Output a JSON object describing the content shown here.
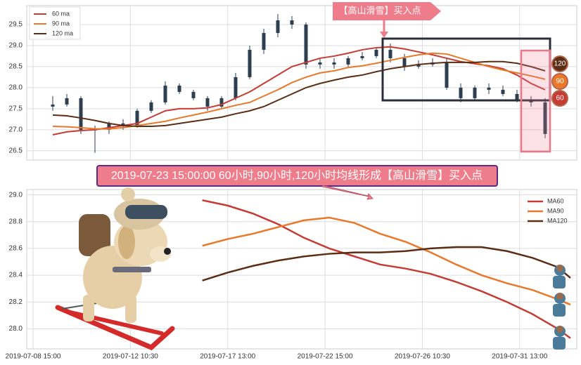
{
  "chart_data": [
    {
      "type": "candlestick",
      "legend": [
        "60 ma",
        "90 ma",
        "120 ma"
      ],
      "xlim": [
        -1.85,
        37.25
      ],
      "ylim": [
        26.28,
        29.95
      ],
      "yticks": [
        26.5,
        {
          "value": 27,
          "label": "27.0"
        },
        27.5,
        {
          "value": 28,
          "label": "28.0"
        },
        28.5,
        {
          "value": 29,
          "label": "29.0"
        },
        29.5
      ],
      "candle_color": "#2c3e50",
      "open": [
        27.55,
        27.6,
        27.75,
        27.0,
        27.0,
        27.15,
        27.1,
        27.45,
        27.65,
        28.05,
        27.9,
        27.75,
        27.55,
        27.75,
        28.25,
        28.9,
        29.3,
        29.6,
        29.5,
        28.55,
        28.6,
        28.55,
        28.7,
        28.75,
        28.9,
        28.7,
        28.5,
        28.55,
        28.6,
        28.0,
        27.75,
        28.0,
        27.95,
        27.85,
        27.7,
        27.65
      ],
      "high": [
        27.8,
        27.85,
        27.8,
        27.1,
        27.2,
        27.25,
        27.5,
        27.7,
        28.15,
        28.1,
        27.95,
        27.8,
        27.8,
        28.35,
        29.0,
        29.4,
        29.75,
        29.7,
        29.55,
        28.7,
        28.7,
        28.75,
        28.85,
        28.95,
        29.05,
        28.8,
        28.65,
        28.7,
        28.7,
        28.1,
        28.05,
        28.1,
        28.05,
        27.95,
        27.8,
        27.75
      ],
      "low": [
        27.45,
        27.55,
        26.9,
        26.45,
        26.9,
        27.0,
        27.05,
        27.4,
        27.6,
        27.85,
        27.7,
        27.45,
        27.5,
        27.7,
        28.2,
        28.8,
        29.2,
        29.4,
        28.45,
        28.45,
        28.45,
        28.5,
        28.65,
        28.7,
        28.6,
        28.4,
        28.45,
        28.5,
        27.95,
        27.65,
        27.7,
        27.85,
        27.8,
        27.65,
        27.55,
        26.8
      ],
      "close": [
        27.6,
        27.75,
        27.0,
        27.0,
        27.15,
        27.1,
        27.45,
        27.65,
        28.05,
        27.9,
        27.75,
        27.55,
        27.75,
        28.25,
        28.9,
        29.3,
        29.6,
        29.5,
        28.55,
        28.6,
        28.55,
        28.7,
        28.75,
        28.9,
        28.7,
        28.5,
        28.55,
        28.6,
        28.0,
        27.75,
        28.0,
        27.95,
        27.85,
        27.7,
        27.65,
        26.9
      ],
      "series": [
        {
          "name": "60 ma",
          "color": "#c43c34",
          "values": [
            26.88,
            26.95,
            26.98,
            27.0,
            27.05,
            27.1,
            27.15,
            27.3,
            27.45,
            27.5,
            27.5,
            27.52,
            27.6,
            27.75,
            27.9,
            28.1,
            28.3,
            28.5,
            28.6,
            28.7,
            28.75,
            28.82,
            28.9,
            28.95,
            28.97,
            28.92,
            28.85,
            28.78,
            28.7,
            28.62,
            28.57,
            28.52,
            28.45,
            28.3,
            28.1,
            27.95
          ]
        },
        {
          "name": "90 ma",
          "color": "#e8782a",
          "values": [
            27.08,
            27.07,
            27.05,
            27.02,
            27.02,
            27.05,
            27.1,
            27.15,
            27.2,
            27.28,
            27.35,
            27.42,
            27.5,
            27.58,
            27.65,
            27.8,
            27.95,
            28.12,
            28.25,
            28.35,
            28.4,
            28.48,
            28.52,
            28.58,
            28.65,
            28.72,
            28.78,
            28.82,
            28.8,
            28.7,
            28.6,
            28.5,
            28.42,
            28.35,
            28.28,
            28.2
          ]
        },
        {
          "name": "120 ma",
          "color": "#5a2d14",
          "values": [
            27.35,
            27.33,
            27.28,
            27.22,
            27.15,
            27.1,
            27.08,
            27.08,
            27.1,
            27.15,
            27.2,
            27.25,
            27.3,
            27.38,
            27.45,
            27.55,
            27.7,
            27.85,
            28.0,
            28.1,
            28.18,
            28.25,
            28.3,
            28.38,
            28.45,
            28.5,
            28.55,
            28.58,
            28.6,
            28.6,
            28.6,
            28.62,
            28.62,
            28.58,
            28.5,
            28.4
          ]
        }
      ],
      "annotation": "【高山滑雪】买入点",
      "badges": [
        "120",
        "90",
        "60"
      ]
    },
    {
      "type": "line",
      "title": "2019-07-23 15:00:00 60小时,90小时,120小时均线形成【高山滑雪】买入点",
      "x": [
        40,
        46,
        52,
        58,
        64,
        70,
        76,
        82,
        88,
        94,
        100,
        106,
        112,
        118,
        124,
        127
      ],
      "xlim": [
        -1.5,
        128.5
      ],
      "xticks": [
        {
          "value": 0,
          "label": "2019-07-08 15:00"
        },
        {
          "value": 23,
          "label": "2019-07-12 10:30"
        },
        {
          "value": 46,
          "label": "2019-07-17 13:00"
        },
        {
          "value": 69,
          "label": "2019-07-22 15:00"
        },
        {
          "value": 92,
          "label": "2019-07-26 10:30"
        },
        {
          "value": 115,
          "label": "2019-07-31 13:00"
        }
      ],
      "ylim": [
        27.85,
        29.04
      ],
      "yticks": [
        {
          "value": 28,
          "label": "28.0"
        },
        28.2,
        28.4,
        28.6,
        28.8,
        {
          "value": 29,
          "label": "29.0"
        }
      ],
      "series": [
        {
          "name": "MA60",
          "color": "#c43c34",
          "values": [
            28.96,
            28.92,
            28.86,
            28.78,
            28.68,
            28.6,
            28.54,
            28.48,
            28.45,
            28.41,
            28.35,
            28.28,
            28.2,
            28.11,
            28.0,
            27.93
          ]
        },
        {
          "name": "MA90",
          "color": "#e8782a",
          "values": [
            28.62,
            28.67,
            28.71,
            28.76,
            28.81,
            28.83,
            28.79,
            28.71,
            28.65,
            28.57,
            28.48,
            28.4,
            28.34,
            28.29,
            28.22,
            28.18
          ]
        },
        {
          "name": "MA120",
          "color": "#5a2d14",
          "values": [
            28.36,
            28.42,
            28.47,
            28.51,
            28.54,
            28.56,
            28.57,
            28.57,
            28.58,
            28.6,
            28.61,
            28.61,
            28.58,
            28.53,
            28.46,
            28.38
          ]
        }
      ]
    }
  ]
}
